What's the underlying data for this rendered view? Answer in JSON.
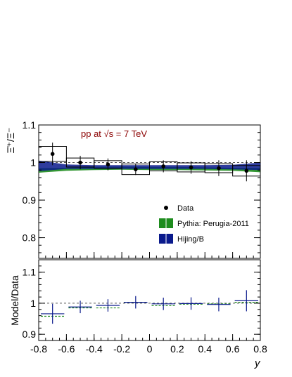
{
  "chart_data": [
    {
      "type": "scatter",
      "title": "",
      "annotation": "pp at √s = 7 TeV",
      "annotation_color": "#8b0000",
      "ylabel": "Ξ̄⁺/Ξ⁻",
      "xlim": [
        -0.8,
        0.8
      ],
      "ylim": [
        0.745,
        1.1
      ],
      "y_ticks": [
        {
          "value": 0.8,
          "label": "0.8"
        },
        {
          "value": 0.9,
          "label": "0.9"
        },
        {
          "value": 1.0,
          "label": "1"
        },
        {
          "value": 1.1,
          "label": "1.1"
        }
      ],
      "reference_line": 1.0,
      "data": {
        "name": "Data",
        "x": [
          -0.7,
          -0.5,
          -0.3,
          -0.1,
          0.1,
          0.3,
          0.5,
          0.7
        ],
        "y": [
          1.023,
          1.0,
          0.995,
          0.982,
          0.99,
          0.987,
          0.985,
          0.978
        ],
        "stat_err": [
          0.03,
          0.018,
          0.016,
          0.015,
          0.016,
          0.017,
          0.021,
          0.028
        ],
        "syst_err": [
          0.02,
          0.012,
          0.01,
          0.014,
          0.012,
          0.012,
          0.012,
          0.014
        ]
      },
      "models": [
        {
          "name": "Pythia: Perugia-2011",
          "color": "#1e8c1e",
          "x": [
            -0.8,
            -0.6,
            -0.4,
            -0.2,
            0.0,
            0.2,
            0.4,
            0.6,
            0.8
          ],
          "center": [
            0.979,
            0.982,
            0.984,
            0.985,
            0.984,
            0.984,
            0.983,
            0.982,
            0.98
          ],
          "halfwidth": [
            0.006,
            0.004,
            0.004,
            0.004,
            0.004,
            0.004,
            0.004,
            0.004,
            0.006
          ]
        },
        {
          "name": "Hijing/B",
          "color": "#0a1a8c",
          "x": [
            -0.8,
            -0.6,
            -0.4,
            -0.2,
            0.0,
            0.2,
            0.4,
            0.6,
            0.8
          ],
          "center": [
            0.991,
            0.989,
            0.988,
            0.988,
            0.988,
            0.988,
            0.988,
            0.988,
            0.99
          ],
          "halfwidth": [
            0.014,
            0.006,
            0.005,
            0.005,
            0.005,
            0.005,
            0.005,
            0.006,
            0.01
          ]
        }
      ],
      "legend": [
        {
          "label": "Data",
          "kind": "marker"
        },
        {
          "label": "Pythia: Perugia-2011",
          "kind": "box",
          "color": "#1e8c1e"
        },
        {
          "label": "Hijing/B",
          "kind": "box",
          "color": "#0a1a8c"
        }
      ],
      "legend_placement": "bottom-right"
    },
    {
      "type": "scatter",
      "title": "",
      "ylabel": "Model/Data",
      "xlabel": "y",
      "xlim": [
        -0.8,
        0.8
      ],
      "ylim": [
        0.88,
        1.14
      ],
      "x_ticks": [
        {
          "value": -0.8,
          "label": "-0.8"
        },
        {
          "value": -0.6,
          "label": "-0.6"
        },
        {
          "value": -0.4,
          "label": "-0.4"
        },
        {
          "value": -0.2,
          "label": "-0.2"
        },
        {
          "value": 0.0,
          "label": "0"
        },
        {
          "value": 0.2,
          "label": "0.2"
        },
        {
          "value": 0.4,
          "label": "0.4"
        },
        {
          "value": 0.6,
          "label": "0.6"
        },
        {
          "value": 0.8,
          "label": "0.8"
        }
      ],
      "y_ticks": [
        {
          "value": 0.9,
          "label": "0.9"
        },
        {
          "value": 1.0,
          "label": "1"
        },
        {
          "value": 1.1,
          "label": "1.1"
        }
      ],
      "reference_line": 1.0,
      "series": [
        {
          "name": "Pythia: Perugia-2011",
          "color": "#1e8c1e",
          "style": "dashed",
          "x_low": [
            -0.8,
            -0.6,
            -0.4,
            -0.2,
            0.0,
            0.2,
            0.4,
            0.6
          ],
          "x_high": [
            -0.6,
            -0.4,
            -0.2,
            0.0,
            0.2,
            0.4,
            0.6,
            0.8
          ],
          "values": [
            0.958,
            0.985,
            0.985,
            1.003,
            0.992,
            0.997,
            0.998,
            1.003
          ]
        },
        {
          "name": "Hijing/B",
          "color": "#0a1a8c",
          "style": "solid",
          "x_low": [
            -0.8,
            -0.6,
            -0.4,
            -0.2,
            0.0,
            0.2,
            0.4,
            0.6
          ],
          "x_high": [
            -0.6,
            -0.4,
            -0.2,
            0.0,
            0.2,
            0.4,
            0.6,
            0.8
          ],
          "values": [
            0.966,
            0.988,
            0.993,
            1.003,
            0.998,
            0.999,
            0.996,
            1.008
          ],
          "errors": [
            0.032,
            0.02,
            0.02,
            0.02,
            0.02,
            0.02,
            0.022,
            0.034
          ]
        }
      ]
    }
  ]
}
